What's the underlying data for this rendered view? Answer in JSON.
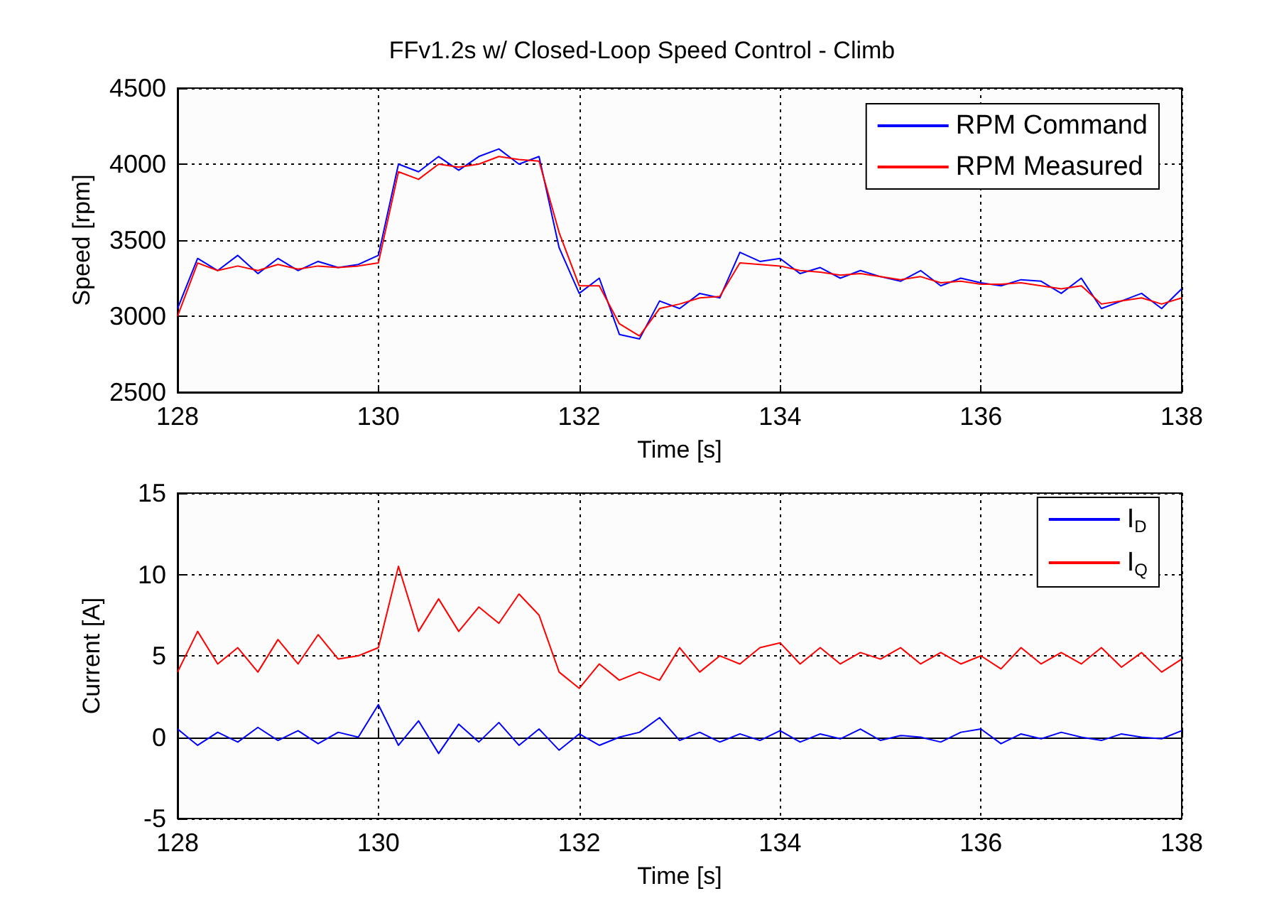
{
  "chart_data": [
    {
      "type": "line",
      "title": "FFv1.2s w/ Closed-Loop Speed Control - Climb",
      "xlabel": "Time [s]",
      "ylabel": "Speed [rpm]",
      "xlim": [
        128,
        138
      ],
      "xticks": [
        128,
        130,
        132,
        134,
        136,
        138
      ],
      "ylim": [
        2500,
        4500
      ],
      "yticks": [
        2500,
        3000,
        3500,
        4000,
        4500
      ],
      "grid": true,
      "legend": "top right",
      "marker": "none",
      "line_style": "solid",
      "x": [
        128,
        128.2,
        128.4,
        128.6,
        128.8,
        129,
        129.2,
        129.4,
        129.6,
        129.8,
        130,
        130.2,
        130.4,
        130.6,
        130.8,
        131,
        131.2,
        131.4,
        131.6,
        131.8,
        132,
        132.2,
        132.4,
        132.6,
        132.8,
        133,
        133.2,
        133.4,
        133.6,
        133.8,
        134,
        134.2,
        134.4,
        134.6,
        134.8,
        135,
        135.2,
        135.4,
        135.6,
        135.8,
        136,
        136.2,
        136.4,
        136.6,
        136.8,
        137,
        137.2,
        137.4,
        137.6,
        137.8,
        138
      ],
      "series": [
        {
          "name": "RPM Command",
          "color": "#0000ff",
          "values": [
            3050,
            3380,
            3300,
            3400,
            3280,
            3380,
            3300,
            3360,
            3320,
            3340,
            3400,
            4000,
            3950,
            4050,
            3960,
            4050,
            4100,
            4000,
            4050,
            3450,
            3150,
            3250,
            2880,
            2850,
            3100,
            3050,
            3150,
            3120,
            3420,
            3360,
            3380,
            3280,
            3320,
            3250,
            3300,
            3260,
            3230,
            3300,
            3200,
            3250,
            3220,
            3200,
            3240,
            3230,
            3150,
            3250,
            3050,
            3100,
            3150,
            3050,
            3180
          ]
        },
        {
          "name": "RPM Measured",
          "color": "#ff0000",
          "values": [
            3000,
            3350,
            3300,
            3330,
            3300,
            3340,
            3310,
            3330,
            3320,
            3330,
            3350,
            3950,
            3900,
            4000,
            3980,
            4000,
            4050,
            4030,
            4020,
            3550,
            3200,
            3200,
            2950,
            2870,
            3050,
            3080,
            3120,
            3130,
            3350,
            3340,
            3330,
            3300,
            3290,
            3270,
            3280,
            3260,
            3240,
            3260,
            3220,
            3230,
            3210,
            3210,
            3220,
            3200,
            3180,
            3200,
            3080,
            3100,
            3120,
            3080,
            3120
          ]
        }
      ]
    },
    {
      "type": "line",
      "xlabel": "Time [s]",
      "ylabel": "Current [A]",
      "xlim": [
        128,
        138
      ],
      "xticks": [
        128,
        130,
        132,
        134,
        136,
        138
      ],
      "ylim": [
        -5,
        15
      ],
      "yticks": [
        -5,
        0,
        5,
        10,
        15
      ],
      "grid": true,
      "legend": "top right",
      "marker": "none",
      "line_style": "solid",
      "x": [
        128,
        128.2,
        128.4,
        128.6,
        128.8,
        129,
        129.2,
        129.4,
        129.6,
        129.8,
        130,
        130.2,
        130.4,
        130.6,
        130.8,
        131,
        131.2,
        131.4,
        131.6,
        131.8,
        132,
        132.2,
        132.4,
        132.6,
        132.8,
        133,
        133.2,
        133.4,
        133.6,
        133.8,
        134,
        134.2,
        134.4,
        134.6,
        134.8,
        135,
        135.2,
        135.4,
        135.6,
        135.8,
        136,
        136.2,
        136.4,
        136.6,
        136.8,
        137,
        137.2,
        137.4,
        137.6,
        137.8,
        138
      ],
      "series": [
        {
          "name": "I$_{D}$",
          "color": "#0000ff",
          "values": [
            0.5,
            -0.5,
            0.3,
            -0.3,
            0.6,
            -0.2,
            0.4,
            -0.4,
            0.3,
            0,
            2,
            -0.5,
            1,
            -1,
            0.8,
            -0.3,
            0.9,
            -0.5,
            0.5,
            -0.8,
            0.2,
            -0.5,
            0,
            0.3,
            1.2,
            -0.2,
            0.3,
            -0.3,
            0.2,
            -0.2,
            0.4,
            -0.3,
            0.2,
            -0.1,
            0.5,
            -0.2,
            0.1,
            0,
            -0.3,
            0.3,
            0.5,
            -0.4,
            0.2,
            -0.1,
            0.3,
            0,
            -0.2,
            0.2,
            0,
            -0.1,
            0.4
          ]
        },
        {
          "name": "I$_{Q}$",
          "color": "#ff0000",
          "values": [
            4,
            6.5,
            4.5,
            5.5,
            4,
            6,
            4.5,
            6.3,
            4.8,
            5,
            5.5,
            10.5,
            6.5,
            8.5,
            6.5,
            8,
            7,
            8.8,
            7.5,
            4,
            3,
            4.5,
            3.5,
            4,
            3.5,
            5.5,
            4,
            5,
            4.5,
            5.5,
            5.8,
            4.5,
            5.5,
            4.5,
            5.2,
            4.8,
            5.5,
            4.5,
            5.2,
            4.5,
            5,
            4.2,
            5.5,
            4.5,
            5.2,
            4.5,
            5.5,
            4.3,
            5.2,
            4,
            4.8
          ]
        }
      ]
    }
  ]
}
